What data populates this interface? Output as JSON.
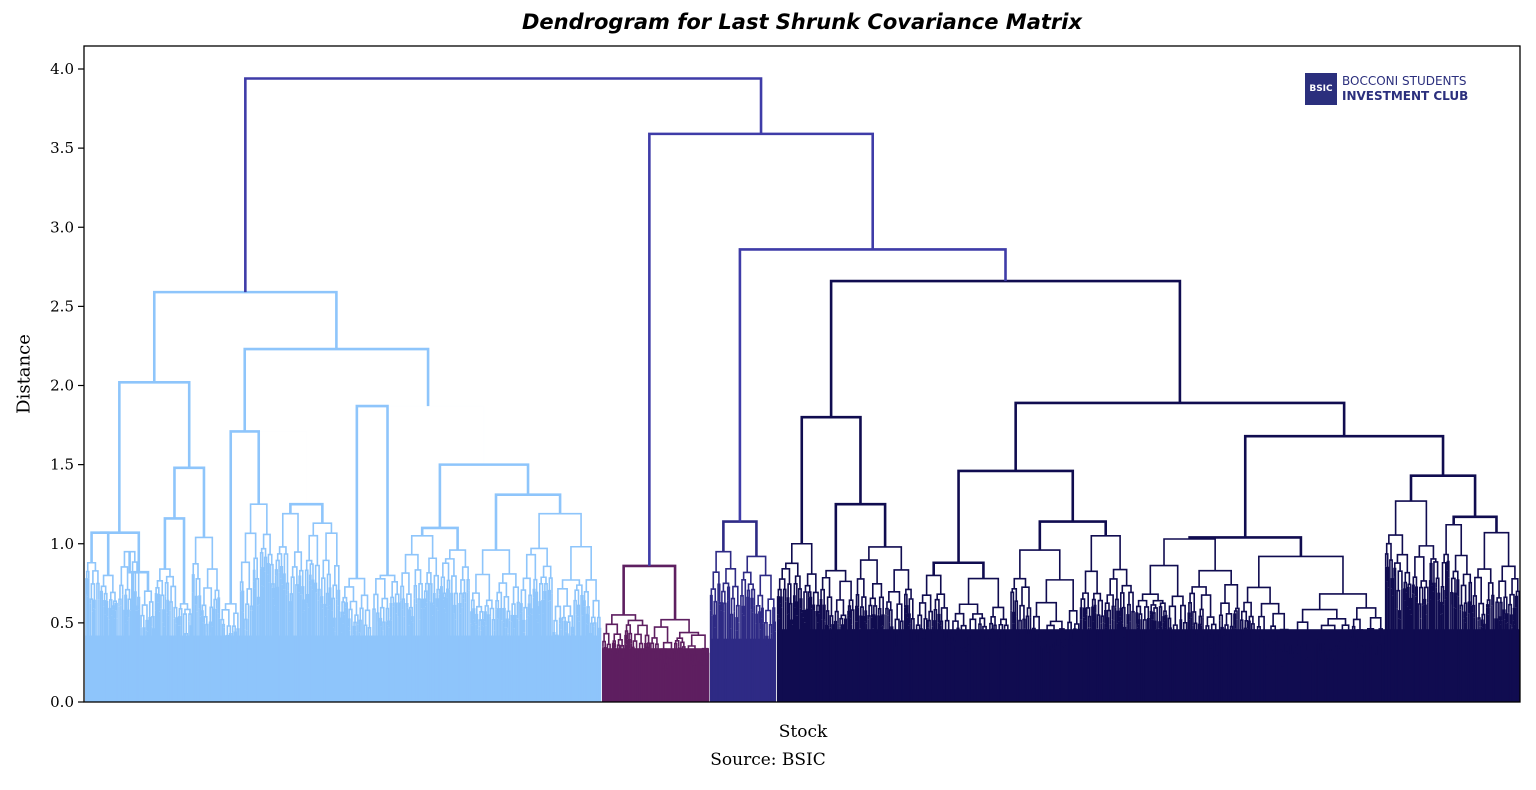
{
  "chart_data": {
    "type": "dendrogram",
    "title": "Dendrogram for Last Shrunk Covariance Matrix",
    "xlabel": "Stock",
    "ylabel": "Distance",
    "source": "Source: BSIC",
    "ylim": [
      0,
      4.15
    ],
    "yticks": [
      "0.0",
      "0.5",
      "1.0",
      "1.5",
      "2.0",
      "2.5",
      "3.0",
      "3.5",
      "4.0"
    ],
    "grid": false,
    "colors": {
      "cluster_1": "#8ec5fb",
      "cluster_2": "#5e1f60",
      "cluster_3": "#2e2a85",
      "cluster_4": "#100c50",
      "above_threshold": "#3f3ca8"
    },
    "top_merges": [
      {
        "height": 3.94,
        "joins": [
          "cluster_1",
          "right_group"
        ]
      },
      {
        "height": 3.59,
        "joins": [
          "cluster_2",
          "right_subgroup"
        ]
      },
      {
        "height": 2.86,
        "joins": [
          "mid_group",
          "cluster_4_group"
        ]
      },
      {
        "height": 2.59,
        "cluster": "cluster_1"
      },
      {
        "height": 2.66,
        "cluster": "cluster_4"
      },
      {
        "height": 2.23,
        "cluster": "cluster_1"
      },
      {
        "height": 2.02,
        "cluster": "cluster_1"
      },
      {
        "height": 1.89,
        "cluster": "cluster_4"
      },
      {
        "height": 1.87,
        "cluster": "cluster_1"
      },
      {
        "height": 1.8,
        "cluster": "cluster_4"
      },
      {
        "height": 1.71,
        "cluster": "cluster_1"
      },
      {
        "height": 1.68,
        "cluster": "cluster_4"
      },
      {
        "height": 1.5,
        "cluster": "cluster_1"
      },
      {
        "height": 1.48,
        "cluster": "cluster_1"
      },
      {
        "height": 1.46,
        "cluster": "cluster_4"
      },
      {
        "height": 1.43,
        "cluster": "cluster_4"
      },
      {
        "height": 1.14,
        "cluster": "cluster_3"
      },
      {
        "height": 0.86,
        "cluster": "cluster_2"
      }
    ]
  },
  "logo": {
    "badge": "BSIC",
    "line1": "BOCCONI STUDENTS",
    "line2": "INVESTMENT CLUB"
  }
}
